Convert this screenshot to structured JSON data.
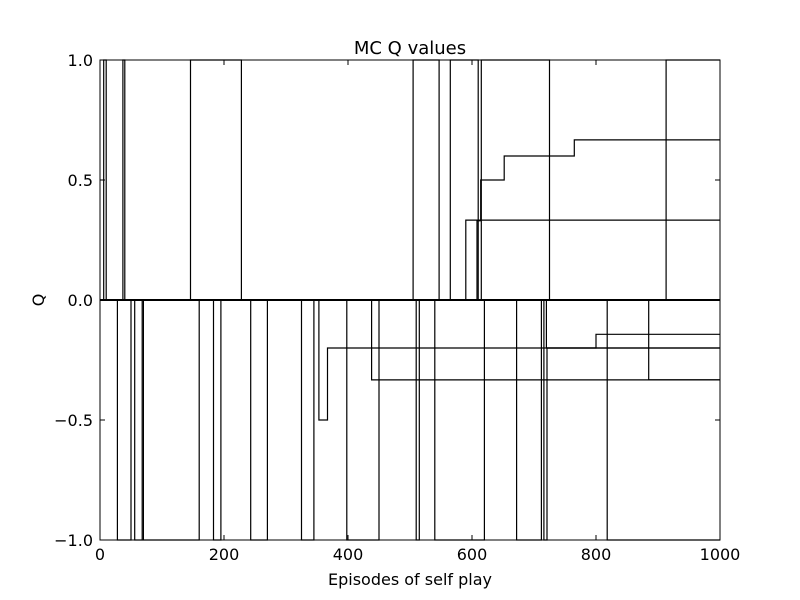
{
  "chart_data": {
    "type": "line",
    "title": "MC Q values",
    "xlabel": "Episodes of self play",
    "ylabel": "Q",
    "xlim": [
      0,
      1000
    ],
    "ylim": [
      -1.0,
      1.0
    ],
    "x_ticks": [
      0,
      200,
      400,
      600,
      800,
      1000
    ],
    "x_tick_labels": [
      "0",
      "200",
      "400",
      "600",
      "800",
      "1000"
    ],
    "y_ticks": [
      1.0,
      0.5,
      0.0,
      -0.5,
      -1.0
    ],
    "y_tick_labels": [
      "1.0",
      "0.5",
      "0.0",
      "−0.5",
      "−1.0"
    ],
    "grid": false,
    "line_color": "#000000",
    "series": [
      {
        "x": [
          0,
          6,
          6,
          10,
          10,
          1000
        ],
        "y": [
          0,
          0,
          1,
          1,
          0,
          0
        ]
      },
      {
        "x": [
          0,
          37,
          37,
          40,
          40,
          1000
        ],
        "y": [
          0,
          0,
          1,
          1,
          0,
          0
        ]
      },
      {
        "x": [
          0,
          146,
          146,
          228,
          228,
          1000
        ],
        "y": [
          0,
          0,
          1,
          1,
          0,
          0
        ]
      },
      {
        "x": [
          0,
          505,
          505,
          547,
          547,
          1000
        ],
        "y": [
          0,
          0,
          1,
          1,
          0,
          0
        ]
      },
      {
        "x": [
          0,
          565,
          565,
          610,
          610,
          1000
        ],
        "y": [
          0,
          0,
          1,
          1,
          0,
          0
        ]
      },
      {
        "x": [
          0,
          615,
          615,
          725,
          725,
          1000
        ],
        "y": [
          0,
          0,
          1,
          1,
          0,
          0
        ]
      },
      {
        "x": [
          0,
          913,
          913,
          1000
        ],
        "y": [
          0,
          0,
          1,
          1
        ]
      },
      {
        "x": [
          0,
          608,
          608,
          614,
          614,
          652,
          652,
          765,
          765,
          1000
        ],
        "y": [
          0,
          0,
          0.33,
          0.33,
          0.5,
          0.5,
          0.6,
          0.6,
          0.667,
          0.667
        ]
      },
      {
        "x": [
          0,
          590,
          590,
          718,
          718,
          1000
        ],
        "y": [
          0,
          0,
          0.333,
          0.333,
          0.333,
          0.333
        ]
      },
      {
        "x": [
          0,
          28,
          28,
          50,
          50,
          1000
        ],
        "y": [
          0,
          0,
          -1,
          -1,
          0,
          0
        ]
      },
      {
        "x": [
          0,
          56,
          56,
          68,
          68,
          1000
        ],
        "y": [
          0,
          0,
          -1,
          -1,
          0,
          0
        ]
      },
      {
        "x": [
          0,
          70,
          70,
          160,
          160,
          1000
        ],
        "y": [
          0,
          0,
          -1,
          -1,
          0,
          0
        ]
      },
      {
        "x": [
          0,
          183,
          183,
          195,
          195,
          1000
        ],
        "y": [
          0,
          0,
          -1,
          -1,
          0,
          0
        ]
      },
      {
        "x": [
          0,
          243,
          243,
          270,
          270,
          1000
        ],
        "y": [
          0,
          0,
          -1,
          -1,
          0,
          0
        ]
      },
      {
        "x": [
          0,
          325,
          325,
          345,
          345,
          1000
        ],
        "y": [
          0,
          0,
          -1,
          -1,
          0,
          0
        ]
      },
      {
        "x": [
          0,
          353,
          353,
          357,
          357,
          367,
          367,
          446,
          446,
          1000
        ],
        "y": [
          0,
          0,
          -0.5,
          -0.5,
          -0.5,
          -0.5,
          -0.2,
          -0.2,
          -0.2,
          -0.2
        ]
      },
      {
        "x": [
          0,
          398,
          398,
          450,
          450,
          1000
        ],
        "y": [
          0,
          0,
          -1,
          -1,
          0,
          0
        ]
      },
      {
        "x": [
          0,
          438,
          438,
          1000
        ],
        "y": [
          0,
          0,
          -0.333,
          -0.333
        ]
      },
      {
        "x": [
          0,
          510,
          510,
          515,
          515,
          1000
        ],
        "y": [
          0,
          0,
          -1,
          -1,
          0,
          0
        ]
      },
      {
        "x": [
          0,
          540,
          540,
          620,
          620,
          1000
        ],
        "y": [
          0,
          0,
          -1,
          -1,
          0,
          0
        ]
      },
      {
        "x": [
          0,
          672,
          672,
          712,
          712,
          1000
        ],
        "y": [
          0,
          0,
          -1,
          -1,
          0,
          0
        ]
      },
      {
        "x": [
          0,
          716,
          716,
          721,
          721,
          728,
          728,
          1000
        ],
        "y": [
          0,
          0,
          -1,
          -1,
          -0.2,
          -0.2,
          -0.2,
          -0.2
        ]
      },
      {
        "x": [
          0,
          720,
          720,
          800,
          800,
          1000
        ],
        "y": [
          0,
          0,
          -0.2,
          -0.2,
          -0.143,
          -0.143
        ]
      },
      {
        "x": [
          0,
          818,
          818,
          1000
        ],
        "y": [
          0,
          0,
          -1,
          -1
        ]
      },
      {
        "x": [
          0,
          885,
          885,
          1000
        ],
        "y": [
          0,
          0,
          -0.333,
          -0.333
        ]
      }
    ]
  }
}
